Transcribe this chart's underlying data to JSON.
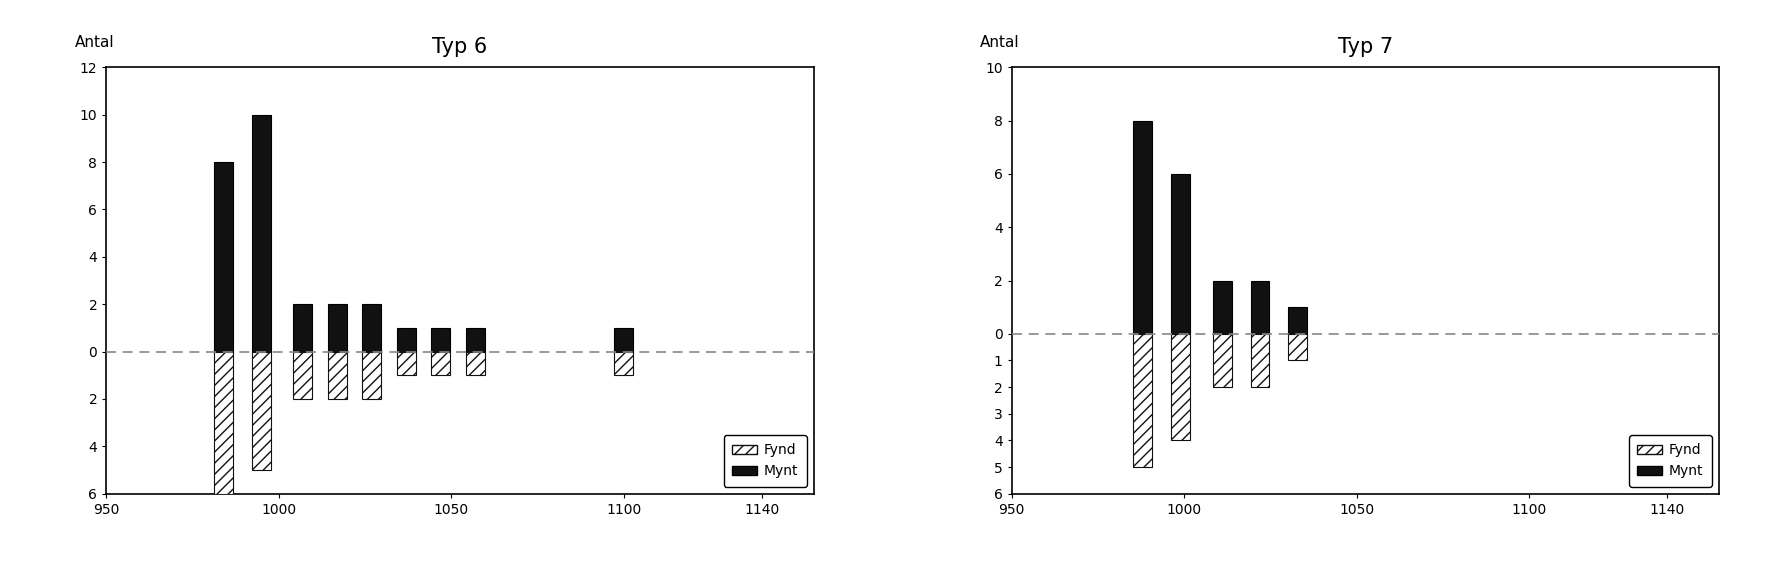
{
  "chart1": {
    "title": "Typ 6",
    "ylabel": "Antal",
    "xlim": [
      950,
      1155
    ],
    "ylim": [
      -6,
      12
    ],
    "yticks": [
      12,
      10,
      8,
      6,
      4,
      2,
      0,
      -2,
      -4,
      -6
    ],
    "ytick_labels": [
      "12",
      "10",
      "8",
      "6",
      "4",
      "2",
      "0",
      "2",
      "4",
      "6"
    ],
    "xticks": [
      950,
      1000,
      1050,
      1100,
      1140
    ],
    "bars": [
      {
        "x": 984,
        "mynt": 8,
        "fynd": -6
      },
      {
        "x": 995,
        "mynt": 10,
        "fynd": -5
      },
      {
        "x": 1007,
        "mynt": 2,
        "fynd": -2
      },
      {
        "x": 1017,
        "mynt": 2,
        "fynd": -2
      },
      {
        "x": 1027,
        "mynt": 2,
        "fynd": -2
      },
      {
        "x": 1037,
        "mynt": 1,
        "fynd": -1
      },
      {
        "x": 1047,
        "mynt": 1,
        "fynd": -1
      },
      {
        "x": 1057,
        "mynt": 1,
        "fynd": -1
      },
      {
        "x": 1100,
        "mynt": 1,
        "fynd": -1
      }
    ],
    "bar_width": 5.5
  },
  "chart2": {
    "title": "Typ 7",
    "ylabel": "Antal",
    "xlim": [
      950,
      1155
    ],
    "ylim": [
      -6,
      10
    ],
    "yticks": [
      10,
      8,
      6,
      4,
      2,
      0,
      -1,
      -2,
      -3,
      -4,
      -5,
      -6
    ],
    "ytick_labels": [
      "10",
      "8",
      "6",
      "4",
      "2",
      "0",
      "1",
      "2",
      "3",
      "4",
      "5",
      "6"
    ],
    "xticks": [
      950,
      1000,
      1050,
      1100,
      1140
    ],
    "bars": [
      {
        "x": 988,
        "mynt": 8,
        "fynd": -5
      },
      {
        "x": 999,
        "mynt": 6,
        "fynd": -4
      },
      {
        "x": 1011,
        "mynt": 2,
        "fynd": -2
      },
      {
        "x": 1022,
        "mynt": 2,
        "fynd": -2
      },
      {
        "x": 1033,
        "mynt": 1,
        "fynd": -1
      }
    ],
    "bar_width": 5.5
  },
  "hatch": "///",
  "mynt_color": "#111111",
  "fynd_facecolor": "white",
  "fynd_edgecolor": "#111111",
  "bg_color": "white",
  "zero_line_color": "#888888",
  "border_color": "black",
  "title_fontsize": 15,
  "label_fontsize": 11,
  "tick_fontsize": 10,
  "legend_fontsize": 10
}
